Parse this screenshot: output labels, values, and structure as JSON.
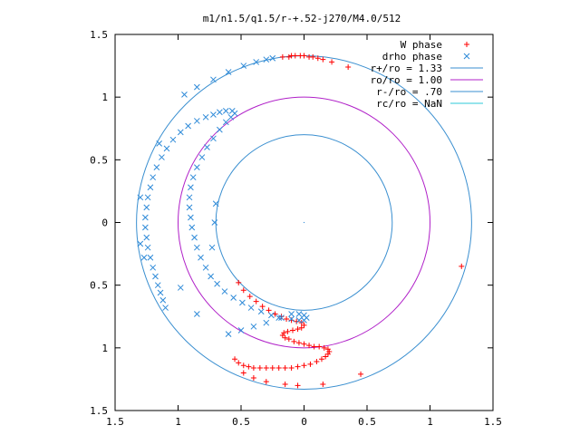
{
  "chart_data": {
    "type": "scatter",
    "title": "m1/n1.5/q1.5/r-+.52-j270/M4.0/512",
    "xlabel": "",
    "ylabel": "",
    "xlim": [
      -1.5,
      1.5
    ],
    "ylim": [
      -1.5,
      1.5
    ],
    "x_ticks": [
      -1.5,
      -1,
      -0.5,
      0,
      0.5,
      1,
      1.5
    ],
    "x_tick_labels": [
      "1.5",
      "1",
      "0.5",
      "0",
      "0.5",
      "1",
      "1.5"
    ],
    "y_ticks": [
      1.5,
      1,
      0.5,
      0,
      -0.5,
      -1,
      -1.5
    ],
    "y_tick_labels": [
      "1.5",
      "1",
      "0.5",
      "0",
      "0.5",
      "1",
      "1.5"
    ],
    "grid": false,
    "legend_position": "top-right",
    "series": [
      {
        "name": "W phase",
        "marker": "+",
        "color": "#ff0000",
        "points": [
          [
            -0.55,
            -1.09
          ],
          [
            -0.52,
            -1.12
          ],
          [
            -0.48,
            -1.14
          ],
          [
            -0.44,
            -1.15
          ],
          [
            -0.4,
            -1.16
          ],
          [
            -0.35,
            -1.16
          ],
          [
            -0.3,
            -1.16
          ],
          [
            -0.25,
            -1.16
          ],
          [
            -0.2,
            -1.16
          ],
          [
            -0.15,
            -1.16
          ],
          [
            -0.1,
            -1.16
          ],
          [
            -0.05,
            -1.15
          ],
          [
            0.0,
            -1.14
          ],
          [
            0.05,
            -1.13
          ],
          [
            0.1,
            -1.11
          ],
          [
            0.14,
            -1.09
          ],
          [
            0.17,
            -1.07
          ],
          [
            0.19,
            -1.05
          ],
          [
            0.2,
            -1.03
          ],
          [
            0.19,
            -1.01
          ],
          [
            0.16,
            -1.0
          ],
          [
            0.12,
            -0.99
          ],
          [
            0.08,
            -0.99
          ],
          [
            0.04,
            -0.98
          ],
          [
            0.0,
            -0.97
          ],
          [
            -0.04,
            -0.96
          ],
          [
            -0.08,
            -0.95
          ],
          [
            -0.12,
            -0.93
          ],
          [
            -0.15,
            -0.92
          ],
          [
            -0.17,
            -0.9
          ],
          [
            -0.16,
            -0.88
          ],
          [
            -0.13,
            -0.87
          ],
          [
            -0.09,
            -0.86
          ],
          [
            -0.05,
            -0.85
          ],
          [
            -0.02,
            -0.84
          ],
          [
            0.0,
            -0.82
          ],
          [
            -0.02,
            -0.8
          ],
          [
            -0.06,
            -0.79
          ],
          [
            -0.1,
            -0.78
          ],
          [
            -0.14,
            -0.77
          ],
          [
            -0.18,
            -0.75
          ],
          [
            -0.23,
            -0.73
          ],
          [
            -0.28,
            -0.7
          ],
          [
            -0.33,
            -0.67
          ],
          [
            -0.38,
            -0.63
          ],
          [
            -0.43,
            -0.59
          ],
          [
            -0.48,
            -0.54
          ],
          [
            -0.52,
            -0.48
          ],
          [
            -0.48,
            -1.2
          ],
          [
            -0.4,
            -1.24
          ],
          [
            -0.3,
            -1.27
          ],
          [
            -0.15,
            -1.29
          ],
          [
            -0.05,
            -1.3
          ],
          [
            0.15,
            -1.29
          ],
          [
            0.45,
            -1.21
          ],
          [
            1.25,
            -0.35
          ],
          [
            0.35,
            1.24
          ],
          [
            0.22,
            1.28
          ],
          [
            0.15,
            1.3
          ],
          [
            0.07,
            1.32
          ],
          [
            0.0,
            1.33
          ],
          [
            -0.07,
            1.33
          ],
          [
            -0.12,
            1.32
          ],
          [
            -0.17,
            1.32
          ],
          [
            -0.1,
            1.33
          ],
          [
            -0.03,
            1.33
          ],
          [
            0.04,
            1.32
          ],
          [
            0.11,
            1.31
          ]
        ]
      },
      {
        "name": "drho phase",
        "marker": "x",
        "color": "#2e8ad8",
        "points": [
          [
            -1.1,
            -0.68
          ],
          [
            -1.12,
            -0.62
          ],
          [
            -1.14,
            -0.56
          ],
          [
            -1.16,
            -0.5
          ],
          [
            -1.18,
            -0.43
          ],
          [
            -1.2,
            -0.36
          ],
          [
            -1.22,
            -0.28
          ],
          [
            -1.24,
            -0.2
          ],
          [
            -1.25,
            -0.12
          ],
          [
            -1.26,
            -0.04
          ],
          [
            -1.26,
            0.04
          ],
          [
            -1.25,
            0.12
          ],
          [
            -1.24,
            0.2
          ],
          [
            -1.22,
            0.28
          ],
          [
            -1.2,
            0.36
          ],
          [
            -1.17,
            0.44
          ],
          [
            -1.13,
            0.52
          ],
          [
            -1.09,
            0.59
          ],
          [
            -1.04,
            0.66
          ],
          [
            -0.98,
            0.72
          ],
          [
            -0.92,
            0.77
          ],
          [
            -0.85,
            0.81
          ],
          [
            -0.78,
            0.84
          ],
          [
            -0.72,
            0.86
          ],
          [
            -0.67,
            0.88
          ],
          [
            -0.62,
            0.89
          ],
          [
            -0.57,
            0.89
          ],
          [
            -0.55,
            0.87
          ],
          [
            -0.58,
            0.84
          ],
          [
            -0.62,
            0.8
          ],
          [
            -0.67,
            0.74
          ],
          [
            -0.72,
            0.67
          ],
          [
            -0.77,
            0.6
          ],
          [
            -0.81,
            0.52
          ],
          [
            -0.85,
            0.44
          ],
          [
            -0.88,
            0.36
          ],
          [
            -0.9,
            0.28
          ],
          [
            -0.91,
            0.2
          ],
          [
            -0.91,
            0.12
          ],
          [
            -0.9,
            0.04
          ],
          [
            -0.89,
            -0.04
          ],
          [
            -0.87,
            -0.12
          ],
          [
            -0.85,
            -0.2
          ],
          [
            -0.82,
            -0.28
          ],
          [
            -0.78,
            -0.36
          ],
          [
            -0.74,
            -0.43
          ],
          [
            -0.69,
            -0.49
          ],
          [
            -0.63,
            -0.55
          ],
          [
            -0.56,
            -0.6
          ],
          [
            -0.49,
            -0.64
          ],
          [
            -0.42,
            -0.68
          ],
          [
            -0.34,
            -0.71
          ],
          [
            -0.26,
            -0.74
          ],
          [
            -0.18,
            -0.76
          ],
          [
            -0.1,
            -0.77
          ],
          [
            -0.04,
            -0.78
          ],
          [
            0.0,
            -0.78
          ],
          [
            0.02,
            -0.76
          ],
          [
            0.0,
            -0.74
          ],
          [
            -0.04,
            -0.73
          ],
          [
            -0.1,
            -0.73
          ],
          [
            -0.2,
            -0.76
          ],
          [
            -0.3,
            -0.8
          ],
          [
            -0.4,
            -0.83
          ],
          [
            -0.5,
            -0.86
          ],
          [
            -0.6,
            -0.89
          ],
          [
            -1.3,
            0.2
          ],
          [
            -1.3,
            -0.17
          ],
          [
            -1.27,
            -0.28
          ],
          [
            -1.15,
            0.63
          ],
          [
            -0.98,
            -0.52
          ],
          [
            -0.85,
            -0.73
          ],
          [
            -0.7,
            0.15
          ],
          [
            -0.71,
            0.0
          ],
          [
            -0.73,
            -0.2
          ],
          [
            -0.95,
            1.02
          ],
          [
            -0.85,
            1.08
          ],
          [
            -0.72,
            1.14
          ],
          [
            -0.6,
            1.2
          ],
          [
            -0.48,
            1.25
          ],
          [
            -0.38,
            1.28
          ],
          [
            -0.3,
            1.3
          ],
          [
            -0.25,
            1.31
          ]
        ]
      }
    ],
    "circles": [
      {
        "name": "r+/ro = 1.33",
        "r": 1.33,
        "color": "#3a8fd0"
      },
      {
        "name": "ro/ro = 1.00",
        "r": 1.0,
        "color": "#b020c8"
      },
      {
        "name": "r-/ro = .70",
        "r": 0.7,
        "color": "#3a8fd0"
      },
      {
        "name": "rc/ro = NaN",
        "r": null,
        "color": "#2ec8d8"
      }
    ]
  }
}
